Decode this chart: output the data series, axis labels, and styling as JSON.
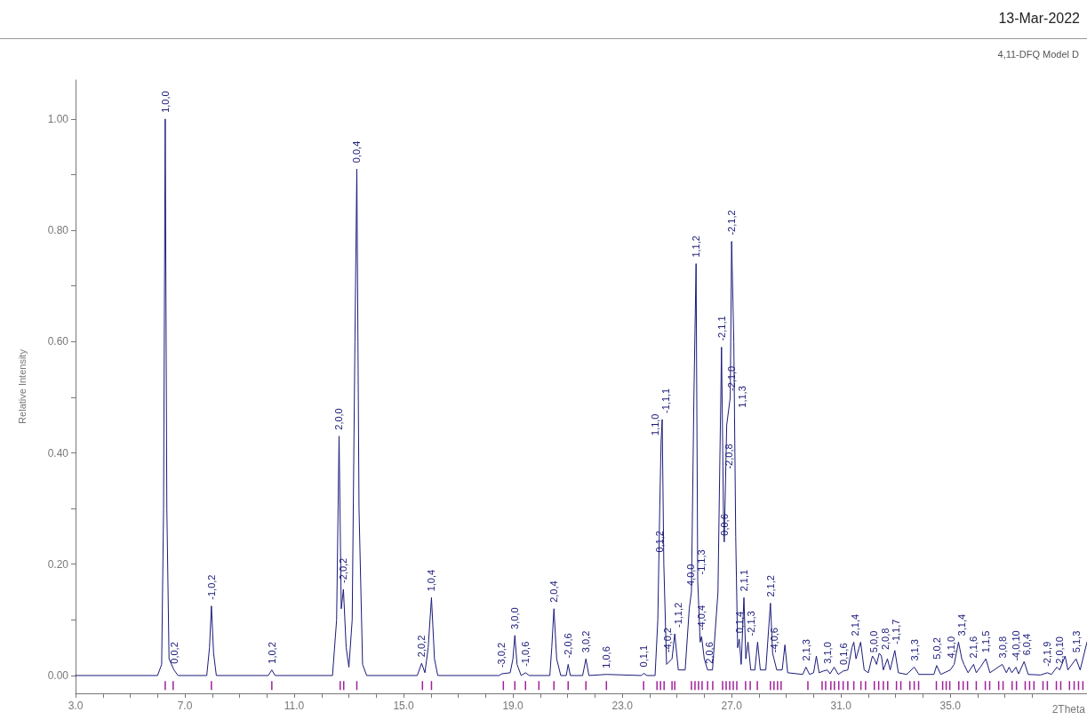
{
  "chart_data": {
    "type": "line",
    "title": "4,11-DFQ Model D",
    "subtitle": "13-Mar-2022",
    "xlabel": "2Theta",
    "ylabel": "Relative Intensity",
    "xlim": [
      3,
      40
    ],
    "ylim": [
      -0.032,
      1.07
    ],
    "xticks": [
      {
        "value": 3,
        "label": "3.0"
      },
      {
        "value": 4,
        "label": null
      },
      {
        "value": 5,
        "label": null
      },
      {
        "value": 6,
        "label": null
      },
      {
        "value": 7,
        "label": "7.0"
      },
      {
        "value": 8,
        "label": null
      },
      {
        "value": 9,
        "label": null
      },
      {
        "value": 10,
        "label": null
      },
      {
        "value": 11,
        "label": "11.0"
      },
      {
        "value": 12,
        "label": null
      },
      {
        "value": 13,
        "label": null
      },
      {
        "value": 14,
        "label": null
      },
      {
        "value": 15,
        "label": "15.0"
      },
      {
        "value": 16,
        "label": null
      },
      {
        "value": 17,
        "label": null
      },
      {
        "value": 18,
        "label": null
      },
      {
        "value": 19,
        "label": "19.0"
      },
      {
        "value": 20,
        "label": null
      },
      {
        "value": 21,
        "label": null
      },
      {
        "value": 22,
        "label": null
      },
      {
        "value": 23,
        "label": "23.0"
      },
      {
        "value": 24,
        "label": null
      },
      {
        "value": 25,
        "label": null
      },
      {
        "value": 26,
        "label": null
      },
      {
        "value": 27,
        "label": "27.0"
      },
      {
        "value": 28,
        "label": null
      },
      {
        "value": 29,
        "label": null
      },
      {
        "value": 30,
        "label": null
      },
      {
        "value": 31,
        "label": "31.0"
      },
      {
        "value": 32,
        "label": null
      },
      {
        "value": 33,
        "label": null
      },
      {
        "value": 34,
        "label": null
      },
      {
        "value": 35,
        "label": "35.0"
      },
      {
        "value": 36,
        "label": null
      },
      {
        "value": 37,
        "label": null
      },
      {
        "value": 38,
        "label": null
      }
    ],
    "yticks": [
      {
        "value": 0,
        "label": "0.00"
      },
      {
        "value": 0.1,
        "label": null
      },
      {
        "value": 0.2,
        "label": "0.20"
      },
      {
        "value": 0.3,
        "label": null
      },
      {
        "value": 0.4,
        "label": "0.40"
      },
      {
        "value": 0.5,
        "label": null
      },
      {
        "value": 0.6,
        "label": "0.60"
      },
      {
        "value": 0.7,
        "label": null
      },
      {
        "value": 0.8,
        "label": "0.80"
      },
      {
        "value": 0.9,
        "label": null
      },
      {
        "value": 1,
        "label": "1.00"
      }
    ],
    "grid": false,
    "series": [
      {
        "marker": "none",
        "color": "#1a1a7a",
        "x": [
          3.0,
          6.0,
          6.15,
          6.22,
          6.28,
          6.34,
          6.42,
          6.6,
          6.75,
          7.8,
          7.9,
          7.97,
          8.05,
          8.15,
          10.05,
          10.18,
          10.3,
          12.4,
          12.55,
          12.64,
          12.72,
          12.8,
          12.9,
          13.0,
          13.12,
          13.22,
          13.29,
          13.37,
          13.5,
          13.65,
          15.5,
          15.66,
          15.78,
          15.9,
          16.02,
          16.13,
          16.25,
          18.5,
          18.58,
          18.9,
          19.0,
          19.07,
          19.15,
          19.3,
          19.46,
          19.6,
          20.35,
          20.42,
          20.5,
          20.6,
          20.75,
          20.95,
          21.02,
          21.1,
          21.55,
          21.67,
          21.78,
          22.42,
          23.7,
          23.78,
          23.9,
          24.2,
          24.3,
          24.37,
          24.42,
          24.46,
          24.52,
          24.62,
          24.82,
          24.92,
          25.05,
          25.3,
          25.45,
          25.53,
          25.62,
          25.7,
          25.76,
          25.85,
          25.9,
          26.0,
          26.12,
          26.3,
          26.5,
          26.63,
          26.7,
          26.73,
          26.82,
          26.95,
          27.0,
          27.08,
          27.15,
          27.22,
          27.28,
          27.35,
          27.45,
          27.52,
          27.6,
          27.7,
          27.85,
          27.95,
          28.05,
          28.25,
          28.42,
          28.5,
          28.55,
          28.65,
          28.85,
          28.95,
          29.05,
          29.6,
          29.72,
          29.85,
          30.0,
          30.1,
          30.2,
          30.35,
          30.5,
          30.6,
          30.75,
          30.9,
          31.08,
          31.25,
          31.4,
          31.47,
          31.55,
          31.72,
          31.85,
          32.0,
          32.15,
          32.22,
          32.3,
          32.4,
          32.48,
          32.55,
          32.7,
          32.8,
          32.97,
          33.1,
          33.4,
          33.68,
          33.85,
          34.4,
          34.5,
          34.65,
          35.0,
          35.14,
          35.3,
          35.42,
          35.5,
          35.65,
          35.85,
          35.95,
          36.1,
          36.3,
          36.45,
          36.9,
          37.05,
          37.15,
          37.25,
          37.4,
          37.5,
          37.7,
          37.85,
          38.3,
          38.55,
          38.7,
          38.9,
          39.0,
          39.2,
          39.3,
          39.6,
          39.75,
          40
        ],
        "values": [
          0,
          0,
          0.02,
          0.3,
          1.0,
          0.3,
          0.03,
          0.01,
          0,
          0,
          0.05,
          0.125,
          0.04,
          0,
          0,
          0.01,
          0,
          0,
          0.1,
          0.43,
          0.12,
          0.155,
          0.05,
          0.015,
          0.1,
          0.6,
          0.91,
          0.3,
          0.02,
          0,
          0,
          0.022,
          0.005,
          0.05,
          0.14,
          0.03,
          0,
          0,
          0.003,
          0.005,
          0.03,
          0.072,
          0.02,
          0,
          0.005,
          0,
          0,
          0.05,
          0.12,
          0.03,
          0,
          0,
          0.02,
          0,
          0,
          0.03,
          0,
          0.002,
          0,
          0.004,
          0,
          0,
          0.1,
          0.3,
          0.42,
          0.46,
          0.2,
          0.02,
          0.03,
          0.075,
          0.01,
          0.01,
          0.12,
          0.15,
          0.5,
          0.74,
          0.17,
          0.06,
          0.07,
          0.03,
          0.01,
          0.01,
          0.15,
          0.59,
          0.3,
          0.24,
          0.45,
          0.5,
          0.78,
          0.6,
          0.25,
          0.05,
          0.065,
          0.02,
          0.14,
          0.03,
          0.06,
          0.01,
          0.01,
          0.06,
          0.01,
          0.01,
          0.13,
          0.04,
          0.03,
          0.01,
          0.01,
          0.055,
          0.005,
          0.002,
          0.015,
          0.002,
          0.005,
          0.035,
          0.005,
          0.008,
          0.01,
          0.003,
          0.015,
          0.002,
          0.008,
          0.01,
          0.05,
          0.06,
          0.03,
          0.06,
          0.01,
          0.005,
          0.035,
          0.03,
          0.02,
          0.04,
          0.035,
          0.01,
          0.03,
          0.01,
          0.045,
          0.005,
          0.002,
          0.015,
          0.002,
          0.002,
          0.018,
          0.002,
          0.01,
          0.02,
          0.06,
          0.03,
          0.02,
          0.005,
          0.02,
          0.005,
          0.015,
          0.03,
          0.005,
          0.02,
          0.005,
          0.015,
          0.005,
          0.015,
          0.003,
          0.025,
          0.002,
          0.001,
          0.005,
          0.002,
          0.015,
          0.01,
          0.035,
          0.01,
          0.03,
          0.01,
          0.06
        ]
      },
      {
        "type": "bar",
        "color": "#a0209a",
        "base": [
          -0.026,
          -0.026,
          -0.026,
          -0.026,
          -0.026,
          -0.026,
          -0.026,
          -0.026,
          -0.026,
          -0.026,
          -0.026,
          -0.026,
          -0.026,
          -0.026,
          -0.026,
          -0.026,
          -0.026,
          -0.026,
          -0.026,
          -0.026,
          -0.026,
          -0.026,
          -0.026,
          -0.026,
          -0.026,
          -0.026,
          -0.026,
          -0.026,
          -0.026,
          -0.026,
          -0.026,
          -0.026,
          -0.026,
          -0.026,
          -0.026,
          -0.026,
          -0.026,
          -0.026,
          -0.026,
          -0.026,
          -0.026,
          -0.026,
          -0.026,
          -0.026,
          -0.026,
          -0.026,
          -0.026,
          -0.026,
          -0.026,
          -0.026,
          -0.026,
          -0.026,
          -0.026,
          -0.026,
          -0.026,
          -0.026,
          -0.026,
          -0.026,
          -0.026,
          -0.026,
          -0.026,
          -0.026,
          -0.026,
          -0.026,
          -0.026,
          -0.026,
          -0.026,
          -0.026,
          -0.026,
          -0.026,
          -0.026,
          -0.026,
          -0.026,
          -0.026,
          -0.026,
          -0.026,
          -0.026,
          -0.026,
          -0.026,
          -0.026,
          -0.026,
          -0.026,
          -0.026,
          -0.026,
          -0.026,
          -0.026
        ],
        "x": [
          6.28,
          6.57,
          7.97,
          10.18,
          12.68,
          12.81,
          13.29,
          15.69,
          16.02,
          18.65,
          19.07,
          19.46,
          19.95,
          20.5,
          21.02,
          21.67,
          22.42,
          23.78,
          24.27,
          24.4,
          24.53,
          24.82,
          24.92,
          25.53,
          25.66,
          25.79,
          25.92,
          26.12,
          26.31,
          26.67,
          26.8,
          26.93,
          27.06,
          27.19,
          27.51,
          27.68,
          27.94,
          28.42,
          28.55,
          28.68,
          28.81,
          29.79,
          30.31,
          30.44,
          30.63,
          30.76,
          30.92,
          31.08,
          31.25,
          31.47,
          31.73,
          31.9,
          32.22,
          32.38,
          32.55,
          32.71,
          33.03,
          33.19,
          33.52,
          33.68,
          33.84,
          34.49,
          34.72,
          34.85,
          34.98,
          35.31,
          35.47,
          35.63,
          35.95,
          36.28,
          36.44,
          36.77,
          36.93,
          37.26,
          37.42,
          37.74,
          37.9,
          38.06,
          38.39,
          38.55,
          38.88,
          39.04,
          39.36,
          39.53,
          39.69,
          39.85
        ],
        "values": [
          0.016,
          0.016,
          0.016,
          0.016,
          0.016,
          0.016,
          0.016,
          0.016,
          0.016,
          0.016,
          0.016,
          0.016,
          0.016,
          0.016,
          0.016,
          0.016,
          0.016,
          0.016,
          0.016,
          0.016,
          0.016,
          0.016,
          0.016,
          0.016,
          0.016,
          0.016,
          0.016,
          0.016,
          0.016,
          0.016,
          0.016,
          0.016,
          0.016,
          0.016,
          0.016,
          0.016,
          0.016,
          0.016,
          0.016,
          0.016,
          0.016,
          0.016,
          0.016,
          0.016,
          0.016,
          0.016,
          0.016,
          0.016,
          0.016,
          0.016,
          0.016,
          0.016,
          0.016,
          0.016,
          0.016,
          0.016,
          0.016,
          0.016,
          0.016,
          0.016,
          0.016,
          0.016,
          0.016,
          0.016,
          0.016,
          0.016,
          0.016,
          0.016,
          0.016,
          0.016,
          0.016,
          0.016,
          0.016,
          0.016,
          0.016,
          0.016,
          0.016,
          0.016,
          0.016,
          0.016,
          0.016,
          0.016,
          0.016,
          0.016,
          0.016,
          0.016
        ]
      }
    ],
    "annotations": [
      {
        "text": "1,0,0",
        "x": 6.28,
        "y": 1.0
      },
      {
        "text": "0,0,2",
        "x": 6.6,
        "y": 0.01
      },
      {
        "text": "-1,0,2",
        "x": 7.97,
        "y": 0.125
      },
      {
        "text": "1,0,2",
        "x": 10.18,
        "y": 0.01
      },
      {
        "text": "2,0,0",
        "x": 12.64,
        "y": 0.43
      },
      {
        "text": "-2,0,2",
        "x": 12.8,
        "y": 0.155
      },
      {
        "text": "0,0,4",
        "x": 13.29,
        "y": 0.91
      },
      {
        "text": "2,0,2",
        "x": 15.66,
        "y": 0.022
      },
      {
        "text": "1,0,4",
        "x": 16.02,
        "y": 0.14
      },
      {
        "text": "-3,0,2",
        "x": 18.58,
        "y": 0.003
      },
      {
        "text": "3,0,0",
        "x": 19.07,
        "y": 0.072
      },
      {
        "text": "-1,0,6",
        "x": 19.46,
        "y": 0.005
      },
      {
        "text": "2,0,4",
        "x": 20.5,
        "y": 0.12
      },
      {
        "text": "-2,0,6",
        "x": 21.02,
        "y": 0.02
      },
      {
        "text": "3,0,2",
        "x": 21.67,
        "y": 0.03
      },
      {
        "text": "1,0,6",
        "x": 22.42,
        "y": 0.002
      },
      {
        "text": "0,1,1",
        "x": 23.78,
        "y": 0.004
      },
      {
        "text": "1,1,0",
        "x": 24.42,
        "y": 0.42
      },
      {
        "text": "-1,1,1",
        "x": 24.46,
        "y": 0.46
      },
      {
        "text": "0,1,2",
        "x": 24.37,
        "y": 0.21
      },
      {
        "text": "-4,0,2",
        "x": 24.82,
        "y": 0.03
      },
      {
        "text": "-1,1,2",
        "x": 24.92,
        "y": 0.075
      },
      {
        "text": "4,0,0",
        "x": 25.53,
        "y": 0.15
      },
      {
        "text": "1,1,2",
        "x": 25.7,
        "y": 0.74
      },
      {
        "text": "-1,1,3",
        "x": 25.76,
        "y": 0.17
      },
      {
        "text": "-4,0,4",
        "x": 25.9,
        "y": 0.07
      },
      {
        "text": "2,0,6",
        "x": 26.12,
        "y": 0.01
      },
      {
        "text": "-2,1,1",
        "x": 26.63,
        "y": 0.59
      },
      {
        "text": "0,0,6",
        "x": 26.73,
        "y": 0.24
      },
      {
        "text": "-2,0,8",
        "x": 26.9,
        "y": 0.36
      },
      {
        "text": "-2,1,0",
        "x": 26.98,
        "y": 0.5
      },
      {
        "text": "1,1,3",
        "x": 27.05,
        "y": 0.47
      },
      {
        "text": "-2,1,2",
        "x": 27.0,
        "y": 0.78
      },
      {
        "text": "0,1,4",
        "x": 27.28,
        "y": 0.065
      },
      {
        "text": "2,1,1",
        "x": 27.45,
        "y": 0.14
      },
      {
        "text": "-2,1,3",
        "x": 27.6,
        "y": 0.06
      },
      {
        "text": "2,1,2",
        "x": 28.42,
        "y": 0.13
      },
      {
        "text": "-4,0,6",
        "x": 28.55,
        "y": 0.03
      },
      {
        "text": "2,1,3",
        "x": 29.72,
        "y": 0.015
      },
      {
        "text": "3,1,0",
        "x": 30.5,
        "y": 0.01
      },
      {
        "text": "0,1,6",
        "x": 31.08,
        "y": 0.008
      },
      {
        "text": "2,1,4",
        "x": 31.47,
        "y": 0.06
      },
      {
        "text": "5,0,0",
        "x": 32.22,
        "y": 0.03
      },
      {
        "text": "2,0,8",
        "x": 32.48,
        "y": 0.035
      },
      {
        "text": "-1,1,7",
        "x": 32.97,
        "y": 0.045
      },
      {
        "text": "3,1,3",
        "x": 33.68,
        "y": 0.015
      },
      {
        "text": "5,0,2",
        "x": 34.5,
        "y": 0.018
      },
      {
        "text": "4,1,0",
        "x": 35.14,
        "y": 0.02
      },
      {
        "text": "3,1,4",
        "x": 35.3,
        "y": 0.06
      },
      {
        "text": "2,1,6",
        "x": 35.5,
        "y": 0.02
      },
      {
        "text": "1,1,5",
        "x": 36.3,
        "y": 0.03
      },
      {
        "text": "3,0,8",
        "x": 36.9,
        "y": 0.02
      },
      {
        "text": "-4,0,10",
        "x": 37.4,
        "y": 0.015
      },
      {
        "text": "6,0,4",
        "x": 37.7,
        "y": 0.025
      },
      {
        "text": "-2,1,9",
        "x": 38.55,
        "y": 0.005
      },
      {
        "text": "2,0,10",
        "x": 39.0,
        "y": 0.01
      },
      {
        "text": "5,1,3",
        "x": 39.6,
        "y": 0.03
      }
    ]
  }
}
